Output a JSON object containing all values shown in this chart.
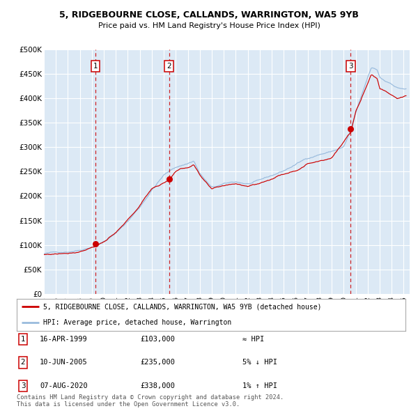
{
  "title": "5, RIDGEBOURNE CLOSE, CALLANDS, WARRINGTON, WA5 9YB",
  "subtitle": "Price paid vs. HM Land Registry's House Price Index (HPI)",
  "plot_bg_color": "#dce9f5",
  "red_line_color": "#cc0000",
  "blue_line_color": "#99bbdd",
  "marker_color": "#cc0000",
  "vline_color": "#cc0000",
  "grid_color": "#ffffff",
  "yticks": [
    0,
    50000,
    100000,
    150000,
    200000,
    250000,
    300000,
    350000,
    400000,
    450000,
    500000
  ],
  "ytick_labels": [
    "£0",
    "£50K",
    "£100K",
    "£150K",
    "£200K",
    "£250K",
    "£300K",
    "£350K",
    "£400K",
    "£450K",
    "£500K"
  ],
  "ylim": [
    0,
    500000
  ],
  "xlim_start": 1995.0,
  "xlim_end": 2025.5,
  "sale_markers": [
    {
      "label": "1",
      "year": 1999.29,
      "price": 103000
    },
    {
      "label": "2",
      "year": 2005.44,
      "price": 235000
    },
    {
      "label": "3",
      "year": 2020.59,
      "price": 338000
    }
  ],
  "legend_entries": [
    {
      "color": "#cc0000",
      "label": "5, RIDGEBOURNE CLOSE, CALLANDS, WARRINGTON, WA5 9YB (detached house)"
    },
    {
      "color": "#99bbdd",
      "label": "HPI: Average price, detached house, Warrington"
    }
  ],
  "table_rows": [
    {
      "num": "1",
      "date": "16-APR-1999",
      "price": "£103,000",
      "hpi": "≈ HPI"
    },
    {
      "num": "2",
      "date": "10-JUN-2005",
      "price": "£235,000",
      "hpi": "5% ↓ HPI"
    },
    {
      "num": "3",
      "date": "07-AUG-2020",
      "price": "£338,000",
      "hpi": "1% ↑ HPI"
    }
  ],
  "footnote": "Contains HM Land Registry data © Crown copyright and database right 2024.\nThis data is licensed under the Open Government Licence v3.0.",
  "xtick_years": [
    1995,
    1996,
    1997,
    1998,
    1999,
    2000,
    2001,
    2002,
    2003,
    2004,
    2005,
    2006,
    2007,
    2008,
    2009,
    2010,
    2011,
    2012,
    2013,
    2014,
    2015,
    2016,
    2017,
    2018,
    2019,
    2020,
    2021,
    2022,
    2023,
    2024,
    2025
  ]
}
